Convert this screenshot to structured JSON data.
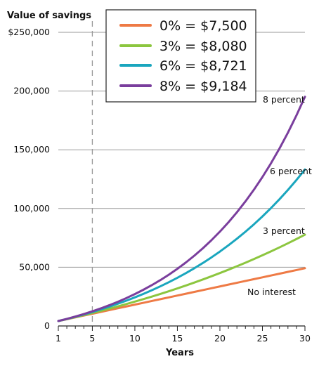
{
  "chart_data": {
    "type": "line",
    "ylabel": "Value of savings",
    "xlabel": "Years",
    "x_ticks": [
      1,
      5,
      10,
      15,
      20,
      25,
      30
    ],
    "y_ticks": [
      0,
      50000,
      100000,
      150000,
      200000,
      250000
    ],
    "y_tick_labels": [
      "0",
      "50,000",
      "100,000",
      "150,000",
      "200,000",
      "$250,000"
    ],
    "xlim": [
      1,
      30
    ],
    "ylim": [
      0,
      250000
    ],
    "grid": "horizontal",
    "legend_position": "top",
    "reference_line": {
      "x": 5,
      "style": "dashed",
      "color": "#999999"
    },
    "series": [
      {
        "key": "0%",
        "legend": "0% = $7,500",
        "annotation": "No interest",
        "color": "#EE7A45",
        "rate": 0.0
      },
      {
        "key": "3%",
        "legend": "3% = $8,080",
        "annotation": "3 percent",
        "color": "#8CC63F",
        "rate": 0.03
      },
      {
        "key": "6%",
        "legend": "6% = $8,721",
        "annotation": "6 percent",
        "color": "#1AA6BE",
        "rate": 0.06
      },
      {
        "key": "8%",
        "legend": "8% = $9,184",
        "annotation": "8 percent",
        "color": "#7A3E9D",
        "rate": 0.08
      }
    ],
    "x": [
      1,
      2,
      3,
      4,
      5,
      6,
      7,
      8,
      9,
      10,
      11,
      12,
      13,
      14,
      15,
      16,
      17,
      18,
      19,
      20,
      21,
      22,
      23,
      24,
      25,
      26,
      27,
      28,
      29,
      30
    ],
    "values": {
      "0%": [
        4200,
        5750,
        7300,
        8850,
        10400,
        11950,
        13500,
        15050,
        16600,
        18150,
        19700,
        21250,
        22800,
        24350,
        25900,
        27450,
        29000,
        30550,
        32100,
        33650,
        35200,
        36750,
        38300,
        39850,
        41400,
        42950,
        44500,
        46050,
        47600,
        49150
      ],
      "3%": [
        4200,
        5826,
        7501,
        9226,
        11002,
        12832,
        14717,
        16658,
        18657,
        20716,
        22838,
        25023,
        27274,
        29592,
        31980,
        34439,
        36972,
        39582,
        42269,
        45037,
        47888,
        50825,
        53849,
        56965,
        60174,
        63479,
        66883,
        70389,
        74000,
        77720
      ],
      "6%": [
        4200,
        5952,
        7809,
        9777,
        11864,
        14075,
        16420,
        18905,
        21539,
        24331,
        27291,
        30429,
        33755,
        37280,
        41017,
        44978,
        49176,
        53627,
        58344,
        63345,
        68646,
        74265,
        80221,
        86534,
        93226,
        100320,
        107839,
        115809,
        124258,
        133213
      ],
      "8%": [
        4200,
        6036,
        8019,
        10161,
        12474,
        14972,
        17670,
        20584,
        23731,
        27130,
        30800,
        34765,
        39046,
        43670,
        48664,
        54057,
        59882,
        66172,
        72966,
        80304,
        88228,
        96787,
        106030,
        116013,
        126794,
        138438,
        151013,
        164594,
        179262,
        195103
      ]
    }
  }
}
